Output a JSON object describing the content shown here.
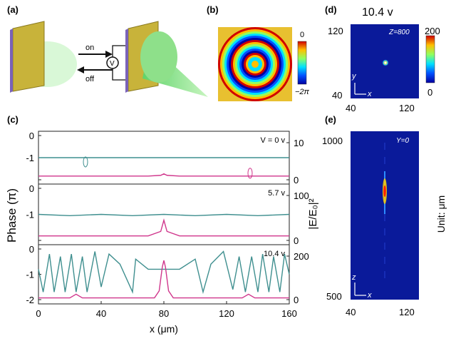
{
  "panels": {
    "a": {
      "label": "(a)",
      "on": "on",
      "off": "off",
      "meter": "V"
    },
    "b": {
      "label": "(b)",
      "scale_top": "0",
      "scale_bottom": "−2π"
    },
    "c": {
      "label": "(c)",
      "ylabel": "Phase (π)",
      "ylabel_right": "|E/E₀|²",
      "xlabel": "x (μm)",
      "xticks": [
        "0",
        "40",
        "80",
        "120",
        "160"
      ],
      "sub": [
        {
          "voltage": "V = 0 v",
          "left_ticks": [
            "0",
            "-1",
            ""
          ],
          "right_ticks": [
            "10",
            "0"
          ]
        },
        {
          "voltage": "5.7 v",
          "left_ticks": [
            "0",
            "-1",
            ""
          ],
          "right_ticks": [
            "100",
            "0"
          ]
        },
        {
          "voltage": "10.4 v",
          "left_ticks": [
            "0",
            "-1",
            "-2"
          ],
          "right_ticks": [
            "200",
            "0"
          ]
        }
      ]
    },
    "d": {
      "label": "(d)",
      "title": "10.4 v",
      "z_tag": "Z=800",
      "y_ticks": [
        "120",
        "40"
      ],
      "x_ticks": [
        "40",
        "120"
      ],
      "axis_y": "y",
      "axis_x": "x",
      "colorbar_top": "200",
      "colorbar_bottom": "0"
    },
    "e": {
      "label": "(e)",
      "y_tag": "Y=0",
      "y_ticks": [
        "1000",
        "500"
      ],
      "x_ticks": [
        "40",
        "120"
      ],
      "axis_z": "z",
      "axis_x": "x",
      "unit": "Unit: μm"
    }
  },
  "colors": {
    "phase": "#3f8f8f",
    "intensity": "#d0368c",
    "field_bg": "#0a1a9a"
  },
  "chart_data": {
    "type": "line",
    "x_range": [
      0,
      160
    ],
    "subplots": [
      {
        "voltage": "V = 0 v",
        "phase_ylim": [
          -2,
          0
        ],
        "intensity_ylim": [
          0,
          10
        ],
        "phase": {
          "x": [
            0,
            160
          ],
          "y": [
            -1,
            -1
          ]
        },
        "intensity": {
          "x": [
            0,
            70,
            78,
            80,
            82,
            90,
            160
          ],
          "y": [
            1,
            1,
            1.2,
            1.6,
            1.2,
            1,
            1
          ]
        }
      },
      {
        "voltage": "5.7 v",
        "phase_ylim": [
          -2,
          0
        ],
        "intensity_ylim": [
          0,
          100
        ],
        "phase": {
          "x": [
            0,
            20,
            40,
            60,
            80,
            100,
            120,
            140,
            160
          ],
          "y": [
            -1,
            -1.05,
            -1,
            -1.05,
            -1,
            -1.05,
            -1,
            -1.05,
            -1
          ]
        },
        "intensity": {
          "x": [
            0,
            70,
            78,
            80,
            82,
            90,
            160
          ],
          "y": [
            10,
            10,
            20,
            45,
            20,
            10,
            10
          ]
        }
      },
      {
        "voltage": "10.4 v",
        "phase_ylim": [
          -2,
          0
        ],
        "intensity_ylim": [
          0,
          200
        ],
        "phase": {
          "x": [
            0,
            3,
            7,
            10,
            14,
            17,
            21,
            24,
            28,
            31,
            36,
            40,
            45,
            52,
            60,
            62,
            70,
            90,
            100,
            105,
            110,
            118,
            124,
            128,
            132,
            136,
            140,
            143,
            147,
            150,
            154,
            157,
            160
          ],
          "y": [
            -0.8,
            -1.7,
            -0.2,
            -1.7,
            -0.3,
            -1.7,
            -0.2,
            -1.7,
            -0.3,
            -1.7,
            -0.1,
            -1.5,
            -0.2,
            -0.6,
            -1.7,
            -0.4,
            -0.8,
            -0.8,
            -0.4,
            -1.7,
            -0.6,
            -0.1,
            -1.6,
            -0.3,
            -1.7,
            -0.3,
            -1.7,
            -0.2,
            -1.7,
            -0.3,
            -1.7,
            -0.2,
            -1.0
          ]
        },
        "intensity": {
          "x": [
            0,
            20,
            24,
            28,
            74,
            77,
            79,
            80,
            81,
            83,
            86,
            130,
            134,
            138,
            160
          ],
          "y": [
            8,
            8,
            25,
            8,
            8,
            40,
            150,
            180,
            150,
            40,
            8,
            8,
            25,
            8,
            8
          ]
        }
      }
    ]
  }
}
